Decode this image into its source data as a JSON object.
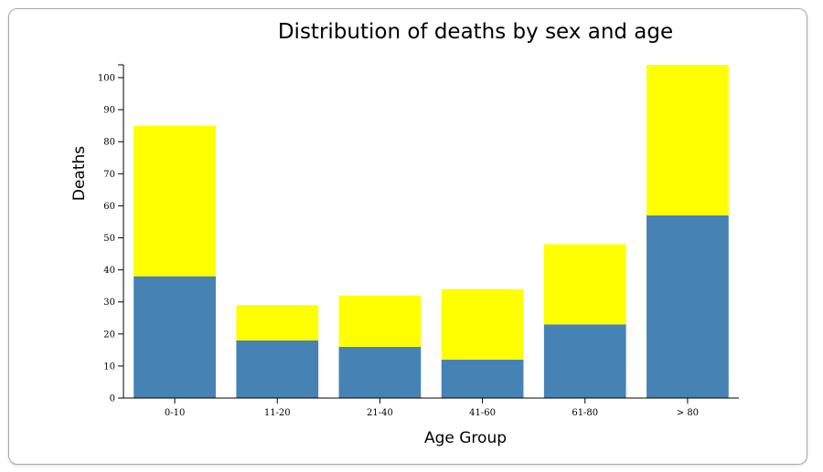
{
  "chart_data": {
    "type": "bar",
    "stacked": true,
    "title": "Distribution of deaths by sex and age",
    "xlabel": "Age Group",
    "ylabel": "Deaths",
    "categories": [
      "0-10",
      "11-20",
      "21-40",
      "41-60",
      "61-80",
      "> 80"
    ],
    "series": [
      {
        "values": [
          38,
          18,
          16,
          12,
          23,
          57
        ],
        "color": "#4682b4"
      },
      {
        "values": [
          47,
          11,
          16,
          22,
          25,
          47
        ],
        "color": "#ffff00"
      }
    ],
    "ylim": [
      0,
      104
    ],
    "yticks": [
      0,
      10,
      20,
      30,
      40,
      50,
      60,
      70,
      80,
      90,
      100
    ],
    "grid": false,
    "legend": "none"
  }
}
